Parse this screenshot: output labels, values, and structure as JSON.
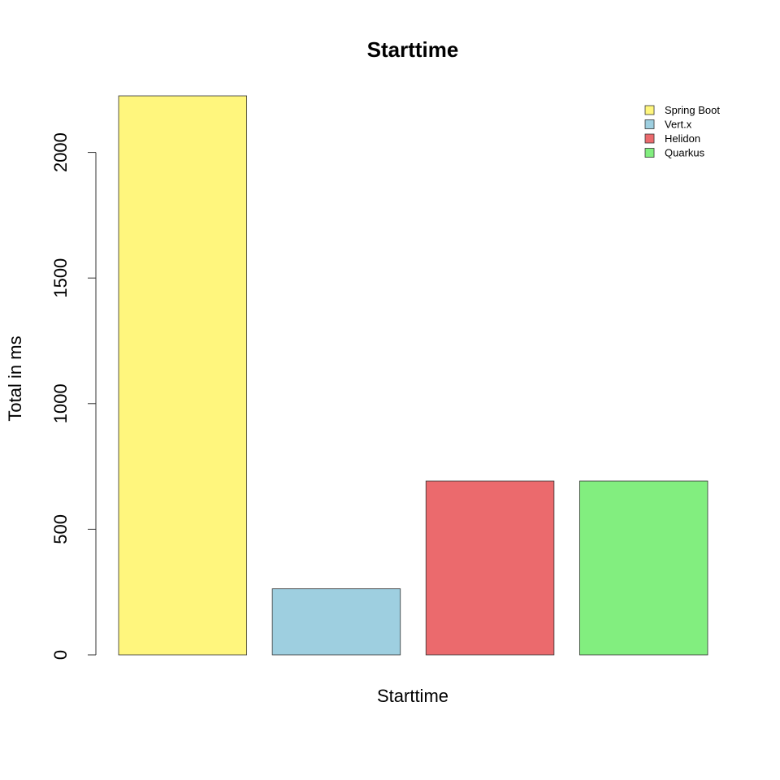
{
  "chart_data": {
    "type": "bar",
    "title": "Starttime",
    "xlabel": "Starttime",
    "ylabel": "Total in ms",
    "ylim": [
      0,
      2225
    ],
    "yticks": [
      0,
      500,
      1000,
      1500,
      2000
    ],
    "series": [
      {
        "name": "Spring Boot",
        "value": 2225,
        "color": "#FFF67D"
      },
      {
        "name": "Vert.x",
        "value": 263,
        "color": "#9ECFE0"
      },
      {
        "name": "Helidon",
        "value": 692,
        "color": "#EB6A6D"
      },
      {
        "name": "Quarkus",
        "value": 692,
        "color": "#82EE7F"
      }
    ],
    "legend_position": "top-right"
  }
}
